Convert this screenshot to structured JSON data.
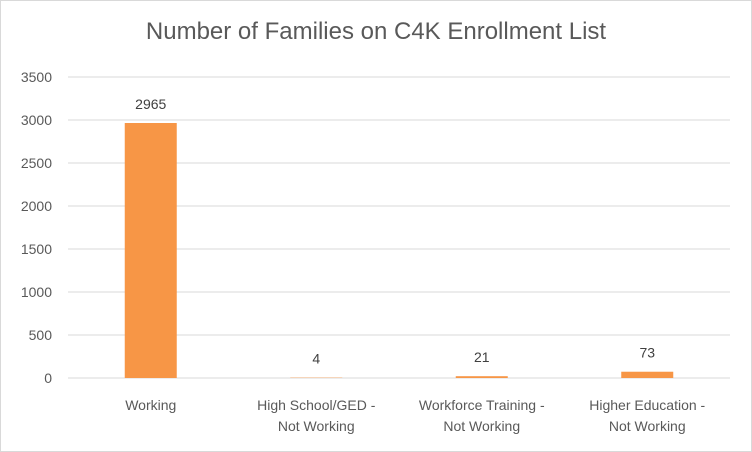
{
  "chart_data": {
    "type": "bar",
    "title": "Number of Families on C4K Enrollment List",
    "categories": [
      [
        "Working"
      ],
      [
        "High School/GED -",
        "Not Working"
      ],
      [
        "Workforce Training -",
        "Not Working"
      ],
      [
        "Higher Education -",
        "Not Working"
      ]
    ],
    "values": [
      2965,
      4,
      21,
      73
    ],
    "data_labels": [
      "2965",
      "4",
      "21",
      "73"
    ],
    "y_ticks": [
      0,
      500,
      1000,
      1500,
      2000,
      2500,
      3000,
      3500
    ],
    "ylim": [
      0,
      3500
    ],
    "xlabel": "",
    "ylabel": "",
    "grid": true,
    "legend": "none",
    "colors": {
      "bar": "#f79646",
      "grid": "#d9d9d9",
      "text": "#595959"
    }
  }
}
